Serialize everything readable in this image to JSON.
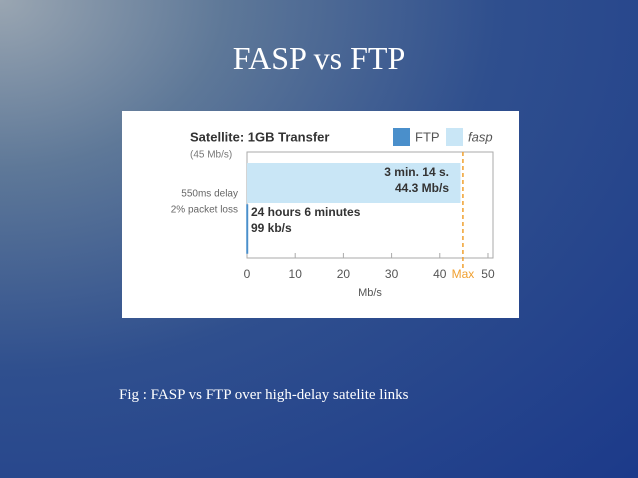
{
  "slide_title": "FASP vs FTP",
  "caption": "Fig : FASP vs FTP over high-delay satelite links",
  "chart_data": {
    "type": "hbar",
    "title": "Satellite: 1GB Transfer",
    "subtitle": "(45 Mb/s)",
    "ylabel": [
      "550ms delay",
      "2% packet loss"
    ],
    "xlabel": "Mb/s",
    "xlim": [
      0,
      51
    ],
    "xticks": [
      0,
      10,
      20,
      30,
      40,
      50
    ],
    "max_line": {
      "value": 44.8,
      "label": "Max"
    },
    "series": [
      {
        "name": "FTP",
        "color": "#4a8fcb",
        "values": [
          0.099
        ],
        "value_labels": [
          "99 kb/s"
        ],
        "time_labels": [
          "24 hours 6 minutes"
        ]
      },
      {
        "name": "fasp",
        "color": "#c9e6f6",
        "values": [
          44.3
        ],
        "value_labels": [
          "44.3 Mb/s"
        ],
        "time_labels": [
          "3 min. 14 s."
        ]
      }
    ]
  }
}
